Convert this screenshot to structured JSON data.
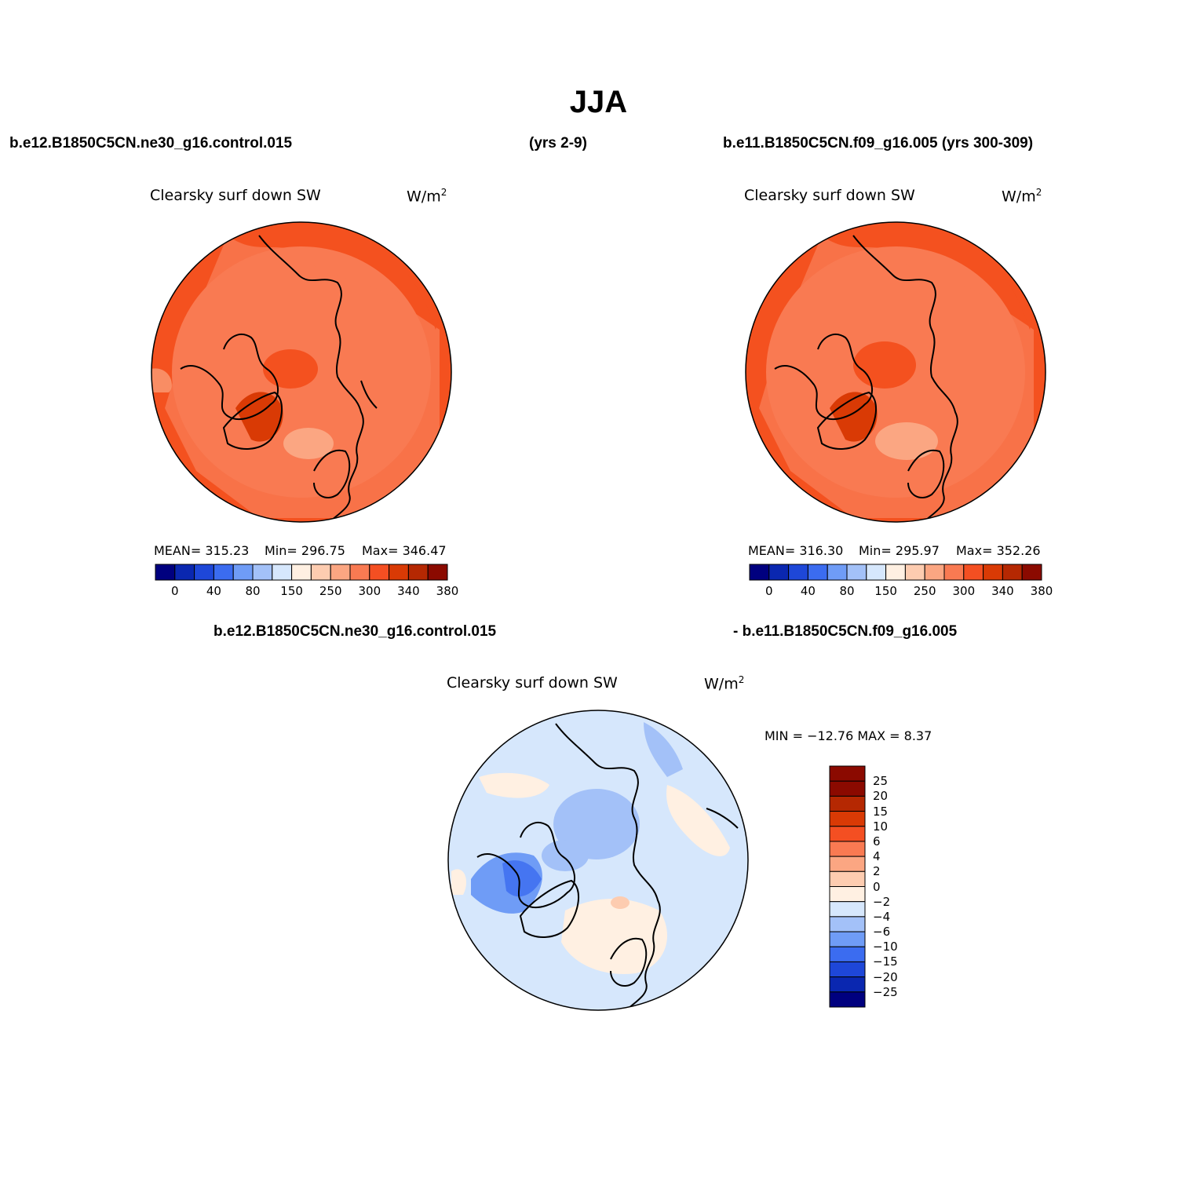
{
  "page": {
    "title": "JJA",
    "left_case": "b.e12.B1850C5CN.ne30_g16.control.015",
    "left_years": "(yrs 2-9)",
    "right_case_header": "b.e11.B1850C5CN.f09_g16.005 (yrs 300-309)",
    "diff_case_a": "b.e12.B1850C5CN.ne30_g16.control.015",
    "diff_case_b": "- b.e11.B1850C5CN.f09_g16.005"
  },
  "panels": [
    {
      "variable": "Clearsky surf down SW",
      "units": "W/m",
      "units_sup": "2",
      "mean_label": "MEAN= 315.23",
      "min_label": "Min= 296.75",
      "max_label": "Max= 346.47",
      "mean": 315.23,
      "min": 296.75,
      "max": 346.47
    },
    {
      "variable": "Clearsky surf down SW",
      "units": "W/m",
      "units_sup": "2",
      "mean_label": "MEAN= 316.30",
      "min_label": "Min= 295.97",
      "max_label": "Max= 352.26",
      "mean": 316.3,
      "min": 295.97,
      "max": 352.26
    },
    {
      "variable": "Clearsky surf down SW",
      "units": "W/m",
      "units_sup": "2",
      "minmax_label": "MIN = −12.76 MAX =    8.37",
      "min": -12.76,
      "max": 8.37
    }
  ],
  "colorbar_abs": {
    "labels": [
      "0",
      "40",
      "80",
      "150",
      "250",
      "300",
      "340",
      "380"
    ],
    "colors": [
      "#00007f",
      "#0a27b0",
      "#1e47d8",
      "#3b6cf0",
      "#6f9cf6",
      "#a3c1f8",
      "#d6e7fc",
      "#fff0e2",
      "#fdccb0",
      "#fba682",
      "#f97a52",
      "#f44f22",
      "#d93a05",
      "#b52802",
      "#8b0a00"
    ]
  },
  "colorbar_diff": {
    "labels": [
      "25",
      "20",
      "15",
      "10",
      "6",
      "4",
      "2",
      "0",
      "−2",
      "−4",
      "−6",
      "−10",
      "−15",
      "−20",
      "−25"
    ],
    "colors": [
      "#8b0a00",
      "#b52802",
      "#d93a05",
      "#f44f22",
      "#f97a52",
      "#fba682",
      "#fdccb0",
      "#fff0e2",
      "#d6e7fc",
      "#a3c1f8",
      "#6f9cf6",
      "#3b6cf0",
      "#1e47d8",
      "#0a27b0",
      "#00007f"
    ]
  }
}
